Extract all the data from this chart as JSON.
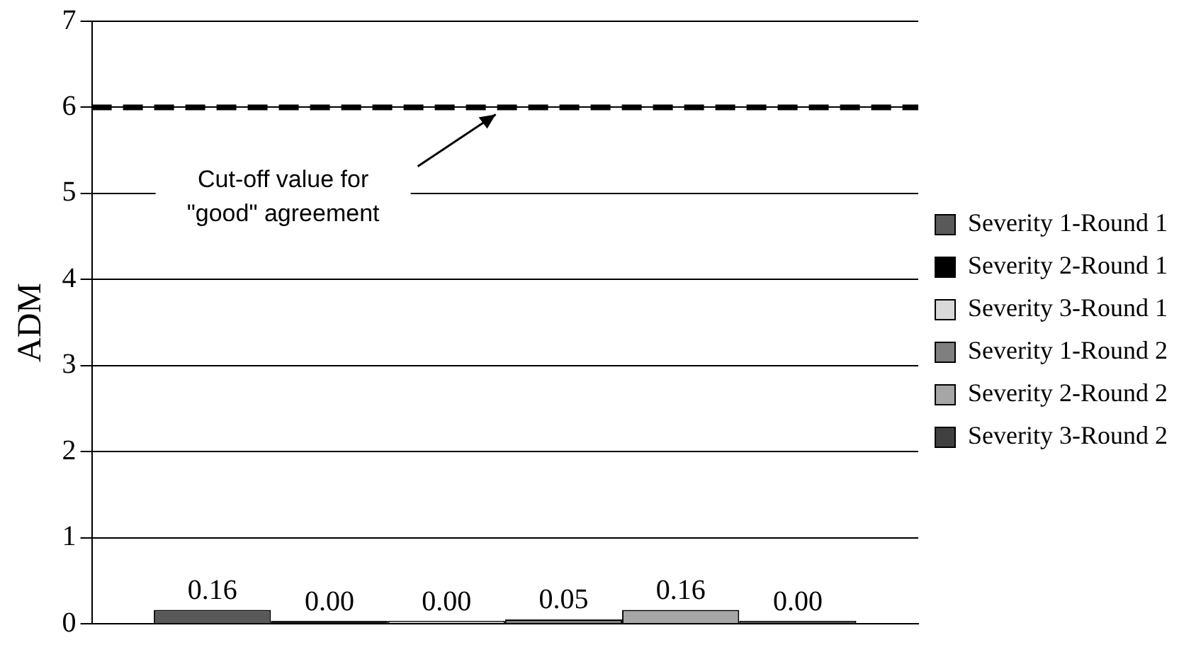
{
  "chart_data": {
    "type": "bar",
    "ylabel": "ADM",
    "categories": [
      null
    ],
    "series": [
      {
        "name": "Severity 1-Round 1",
        "color": "#595959",
        "values": [
          0.16
        ],
        "value_labels": [
          "0.16"
        ]
      },
      {
        "name": "Severity 2-Round 1",
        "color": "#000000",
        "values": [
          0
        ],
        "value_labels": [
          "0.00"
        ]
      },
      {
        "name": "Severity 3-Round 1",
        "color": "#d9d9d9",
        "values": [
          0
        ],
        "value_labels": [
          "0.00"
        ]
      },
      {
        "name": "Severity 1-Round 2",
        "color": "#7f7f7f",
        "values": [
          0.05
        ],
        "value_labels": [
          "0.05"
        ]
      },
      {
        "name": "Severity 2-Round 2",
        "color": "#a6a6a6",
        "values": [
          0.16
        ],
        "value_labels": [
          "0.16"
        ]
      },
      {
        "name": "Severity 3-Round 2",
        "color": "#404040",
        "values": [
          0
        ],
        "value_labels": [
          "0.00"
        ]
      }
    ],
    "ylim": [
      0,
      7
    ],
    "yticks": [
      0,
      1,
      2,
      3,
      4,
      5,
      6,
      7
    ],
    "grid": "y",
    "legend": "right",
    "ref_lines": [
      {
        "axis": "y",
        "value": 6,
        "color": "#000000",
        "line_style": "dashed"
      }
    ],
    "annotations": [
      {
        "text": "Cut-off value for \"good\" agreement",
        "y": 6
      }
    ]
  }
}
